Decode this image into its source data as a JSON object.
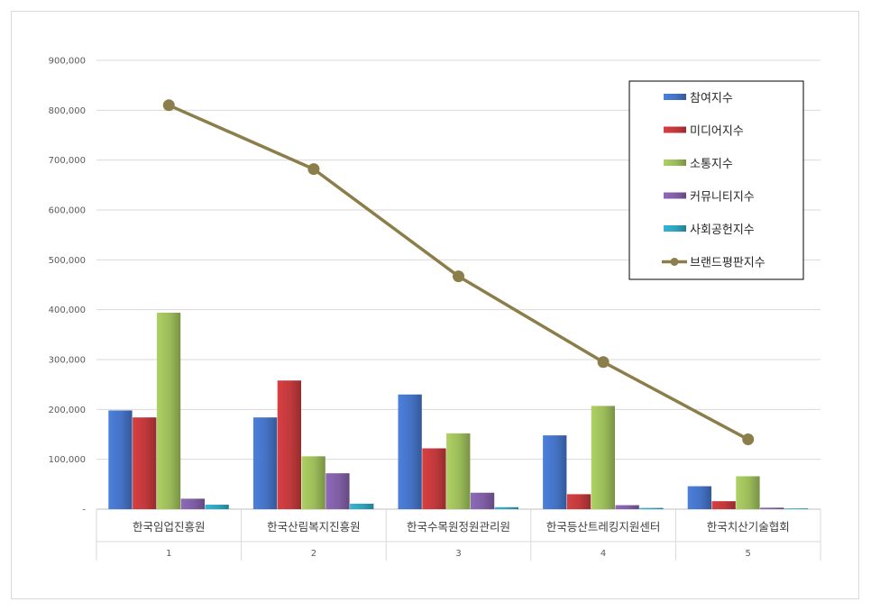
{
  "chart_data": {
    "type": "bar",
    "categories": [
      "한국임업진흥원",
      "한국산림복지진흥원",
      "한국수목원정원관리원",
      "한국등산트레킹지원센터",
      "한국치산기술협회"
    ],
    "ranks": [
      "1",
      "2",
      "3",
      "4",
      "5"
    ],
    "ylim": [
      0,
      900000
    ],
    "yticks": [
      "-",
      "100,000",
      "200,000",
      "300,000",
      "400,000",
      "500,000",
      "600,000",
      "700,000",
      "800,000",
      "900,000"
    ],
    "grid": true,
    "legend_position": "top-right",
    "series": [
      {
        "name": "참여지수",
        "type": "bar",
        "color": "#4472c4",
        "values": [
          198000,
          184000,
          230000,
          148000,
          46000
        ]
      },
      {
        "name": "미디어지수",
        "type": "bar",
        "color": "#c0393b",
        "values": [
          184000,
          258000,
          122000,
          30000,
          16000
        ]
      },
      {
        "name": "소통지수",
        "type": "bar",
        "color": "#9bbb59",
        "values": [
          394000,
          106000,
          152000,
          207000,
          66000
        ]
      },
      {
        "name": "커뮤니티지수",
        "type": "bar",
        "color": "#7f5ea4",
        "values": [
          21000,
          72000,
          33000,
          8000,
          3000
        ]
      },
      {
        "name": "사회공헌지수",
        "type": "bar",
        "color": "#2fa2bd",
        "values": [
          9000,
          11000,
          4000,
          2500,
          1500
        ]
      },
      {
        "name": "브랜드평판지수",
        "type": "line",
        "color": "#8c7e4a",
        "values": [
          810000,
          682000,
          467000,
          295000,
          140000
        ]
      }
    ]
  }
}
